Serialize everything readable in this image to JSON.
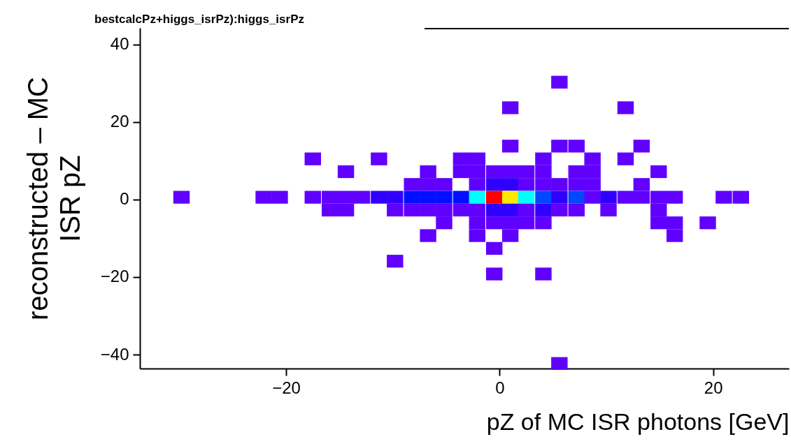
{
  "chart_data": {
    "type": "scatter",
    "title": "bestcalcPz+higgs_isrPz):higgs_isrPz",
    "xlabel": "pZ of MC ISR photons [GeV]",
    "ylabel": "reconstructed – MC\nISR pZ",
    "xlim": [
      -33.7,
      27.1
    ],
    "ylim": [
      -43.6,
      44.3
    ],
    "xticks": [
      {
        "value": -20,
        "label": "−20"
      },
      0,
      20
    ],
    "yticks": [
      40,
      20,
      0,
      {
        "value": -20,
        "label": "−20"
      },
      {
        "value": -40,
        "label": "−40"
      }
    ],
    "grid": false,
    "marker": "square",
    "x": [
      5.6,
      1.0,
      11.8,
      1.0,
      5.6,
      7.2,
      13.3,
      -17.5,
      -11.3,
      -3.6,
      -2.1,
      4.1,
      8.7,
      11.8,
      -14.4,
      -6.7,
      -3.6,
      -2.1,
      -0.5,
      1.0,
      2.5,
      4.1,
      7.2,
      8.7,
      14.9,
      -8.2,
      -6.7,
      -5.2,
      -2.1,
      -0.5,
      1.0,
      2.5,
      4.1,
      5.6,
      7.2,
      8.7,
      13.3,
      -29.8,
      -22.1,
      -20.6,
      -17.5,
      -15.9,
      -14.4,
      -12.9,
      -11.3,
      -9.8,
      -8.2,
      -6.7,
      -5.2,
      -3.6,
      -2.1,
      -0.5,
      1.0,
      2.5,
      4.1,
      5.6,
      7.2,
      8.7,
      10.2,
      11.8,
      13.3,
      14.9,
      16.4,
      21.0,
      22.6,
      -15.9,
      -14.4,
      -9.8,
      -8.2,
      -6.7,
      -5.2,
      -3.6,
      -2.1,
      -0.5,
      1.0,
      2.5,
      4.1,
      5.6,
      7.2,
      10.2,
      14.9,
      -5.2,
      -2.1,
      -0.5,
      1.0,
      2.5,
      4.1,
      14.9,
      16.4,
      19.5,
      -6.7,
      -2.1,
      1.0,
      16.4,
      -0.5,
      -9.8,
      -0.5,
      4.1,
      5.6
    ],
    "values": [
      30.3,
      23.7,
      23.7,
      13.8,
      13.8,
      13.8,
      13.8,
      10.5,
      10.5,
      10.5,
      10.5,
      10.5,
      10.5,
      10.5,
      7.2,
      7.2,
      7.2,
      7.2,
      7.2,
      7.2,
      7.2,
      7.2,
      7.2,
      7.2,
      7.2,
      3.9,
      3.9,
      3.9,
      3.9,
      3.9,
      3.9,
      3.9,
      3.9,
      3.9,
      3.9,
      3.9,
      3.9,
      0.6,
      0.6,
      0.6,
      0.6,
      0.6,
      0.6,
      0.6,
      0.6,
      0.6,
      0.6,
      0.6,
      0.6,
      0.6,
      0.6,
      0.6,
      0.6,
      0.6,
      0.6,
      0.6,
      0.6,
      0.6,
      0.6,
      0.6,
      0.6,
      0.6,
      0.6,
      0.6,
      0.6,
      -2.7,
      -2.7,
      -2.7,
      -2.7,
      -2.7,
      -2.7,
      -2.7,
      -2.7,
      -2.7,
      -2.7,
      -2.7,
      -2.7,
      -2.7,
      -2.7,
      -2.7,
      -2.7,
      -6.0,
      -6.0,
      -6.0,
      -6.0,
      -6.0,
      -6.0,
      -6.0,
      -6.0,
      -6.0,
      -9.3,
      -9.3,
      -9.3,
      -9.3,
      -12.6,
      -15.9,
      -19.2,
      -19.2,
      -42.3
    ],
    "colors": [
      "#6000ff",
      "#6000ff",
      "#6000ff",
      "#6000ff",
      "#6000ff",
      "#6000ff",
      "#6000ff",
      "#6000ff",
      "#6000ff",
      "#6000ff",
      "#6000ff",
      "#6000ff",
      "#6000ff",
      "#6000ff",
      "#6000ff",
      "#6000ff",
      "#6000ff",
      "#6000ff",
      "#6000ff",
      "#6000ff",
      "#6000ff",
      "#6000ff",
      "#6000ff",
      "#6000ff",
      "#6000ff",
      "#6000ff",
      "#6000ff",
      "#6000ff",
      "#6000ff",
      "#3000ff",
      "#3000ff",
      "#6000ff",
      "#6000ff",
      "#6000ff",
      "#6000ff",
      "#6000ff",
      "#6000ff",
      "#6000ff",
      "#6000ff",
      "#6000ff",
      "#6000ff",
      "#6000ff",
      "#6000ff",
      "#6000ff",
      "#3000ff",
      "#3000ff",
      "#0010ff",
      "#0010ff",
      "#0010ff",
      "#0010ff",
      "#00ffff",
      "#ff0000",
      "#ffe800",
      "#00ffff",
      "#0048ff",
      "#3000ff",
      "#0048ff",
      "#6000ff",
      "#3000ff",
      "#6000ff",
      "#6000ff",
      "#6000ff",
      "#6000ff",
      "#6000ff",
      "#6000ff",
      "#6000ff",
      "#6000ff",
      "#6000ff",
      "#6000ff",
      "#6000ff",
      "#6000ff",
      "#6000ff",
      "#6000ff",
      "#3000ff",
      "#3000ff",
      "#6000ff",
      "#3000ff",
      "#6000ff",
      "#6000ff",
      "#6000ff",
      "#6000ff",
      "#6000ff",
      "#6000ff",
      "#6000ff",
      "#6000ff",
      "#6000ff",
      "#6000ff",
      "#6000ff",
      "#6000ff",
      "#6000ff",
      "#6000ff",
      "#6000ff",
      "#6000ff",
      "#6000ff",
      "#6000ff",
      "#6000ff",
      "#6000ff",
      "#6000ff",
      "#6000ff"
    ]
  }
}
